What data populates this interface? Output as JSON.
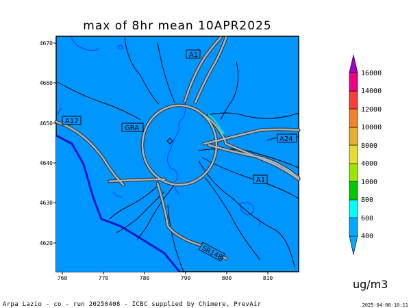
{
  "title": "max of 8hr mean 10APR2025",
  "unit": "ug/m3",
  "footer": "Arpa Lazio - co - run 20250408 - ICBC supplied by Chimere, PrevAir",
  "timestamp": "2025-04-08-10:11",
  "x_ticks": [
    "760",
    "770",
    "780",
    "790",
    "800",
    "810"
  ],
  "y_ticks": [
    "4670",
    "4660",
    "4650",
    "4640",
    "4630",
    "4620"
  ],
  "road_labels": [
    "A1",
    "A12",
    "GRA",
    "A24",
    "A1",
    "SR148"
  ],
  "colorbar_labels": [
    "16000",
    "14000",
    "12000",
    "10000",
    "8000",
    "4000",
    "1000",
    "800",
    "600",
    "400"
  ],
  "colors": {
    "field": "#0096ff",
    "roads": "#8aa3b8",
    "coast": "#1414c8",
    "colorbar": [
      "#00aaff",
      "#00ffff",
      "#00c800",
      "#9be600",
      "#e6dc32",
      "#e6af2d",
      "#f08228",
      "#fa3c3c",
      "#f00082",
      "#a000c8"
    ]
  }
}
